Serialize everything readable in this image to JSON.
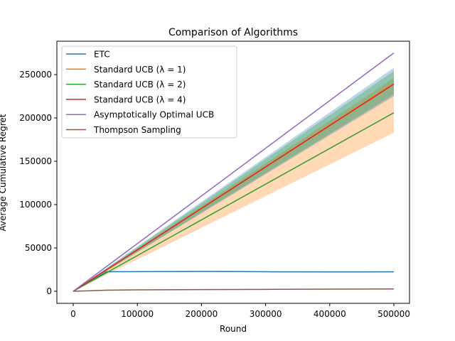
{
  "chart_data": {
    "type": "line",
    "title": "Comparison of Algorithms",
    "xlabel": "Round",
    "ylabel": "Average Cumulative Regret",
    "xlim": [
      -25000,
      525000
    ],
    "ylim": [
      -14000,
      288000
    ],
    "xticks": [
      0,
      100000,
      200000,
      300000,
      400000,
      500000
    ],
    "xtick_labels": [
      "0",
      "100000",
      "200000",
      "300000",
      "400000",
      "500000"
    ],
    "yticks": [
      0,
      50000,
      100000,
      150000,
      200000,
      250000
    ],
    "ytick_labels": [
      "0",
      "50000",
      "100000",
      "150000",
      "200000",
      "250000"
    ],
    "legend_position": "top-left",
    "series": [
      {
        "name": "ETC",
        "color": "#1f77b4",
        "x": [
          0,
          52000,
          100000,
          200000,
          250000,
          300000,
          400000,
          500000
        ],
        "y": [
          0,
          22500,
          22600,
          22800,
          22700,
          22500,
          22300,
          22400
        ]
      },
      {
        "name": "Standard UCB (λ = 1)",
        "color": "#ff7f0e",
        "x": [
          0,
          500000
        ],
        "y": [
          0,
          240000
        ]
      },
      {
        "name": "Standard UCB (λ = 2)",
        "color": "#2ca02c",
        "x": [
          0,
          500000
        ],
        "y": [
          0,
          206000
        ]
      },
      {
        "name": "Standard UCB (λ = 4)",
        "color": "#d62728",
        "x": [
          0,
          500000
        ],
        "y": [
          0,
          239000
        ]
      },
      {
        "name": "Asymptotically Optimal UCB",
        "color": "#9467bd",
        "x": [
          0,
          500000
        ],
        "y": [
          0,
          275000
        ]
      },
      {
        "name": "Thompson Sampling",
        "color": "#8c564b",
        "x": [
          0,
          50000,
          100000,
          200000,
          300000,
          400000,
          500000
        ],
        "y": [
          0,
          1200,
          1600,
          1900,
          2200,
          2500,
          2700
        ]
      }
    ],
    "bands": [
      {
        "color": "#ff7f0e",
        "x": [
          0,
          500000
        ],
        "lower": [
          0,
          183000
        ],
        "upper": [
          0,
          246000
        ]
      },
      {
        "color": "#1f77b4",
        "x": [
          0,
          500000
        ],
        "lower": [
          0,
          225000
        ],
        "upper": [
          0,
          258000
        ]
      },
      {
        "color": "#2ca02c",
        "x": [
          0,
          500000
        ],
        "lower": [
          0,
          227000
        ],
        "upper": [
          0,
          254000
        ]
      }
    ]
  }
}
